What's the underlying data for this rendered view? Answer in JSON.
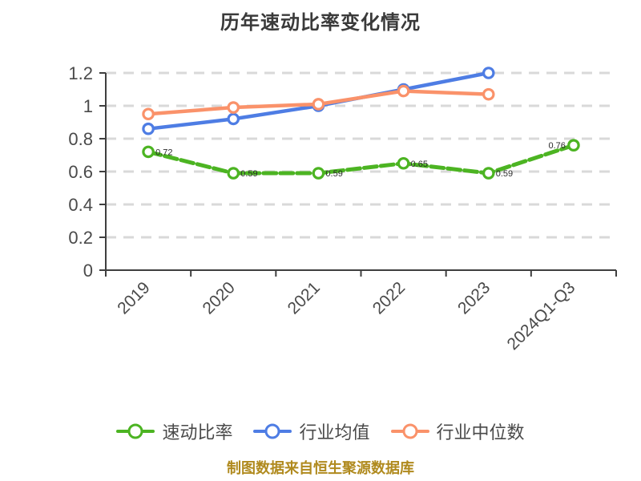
{
  "title": "历年速动比率变化情况",
  "caption": "制图数据来自恒生聚源数据库",
  "legend": {
    "items": [
      {
        "label": "速动比率",
        "color": "#4CB422"
      },
      {
        "label": "行业均值",
        "color": "#4E7DE4"
      },
      {
        "label": "行业中位数",
        "color": "#FA926A"
      }
    ]
  },
  "colors": {
    "quick_ratio": "#4CB422",
    "industry_mean": "#4E7DE4",
    "industry_median": "#FA926A",
    "grid": "#D9D9D9",
    "axis": "#3F3F3F",
    "tick_label": "#4A4A4A",
    "title": "#3A3A3A",
    "caption": "#B08A1E",
    "point_label": "#2B2B2B",
    "marker_fill": "#FFFFFF"
  },
  "chart_data": {
    "type": "line",
    "title": "历年速动比率变化情况",
    "categories": [
      "2019",
      "2020",
      "2021",
      "2022",
      "2023",
      "2024Q1-Q3"
    ],
    "series": [
      {
        "name": "速动比率",
        "color": "#4CB422",
        "line_style": "dashed",
        "values": [
          0.72,
          0.59,
          0.59,
          0.65,
          0.59,
          0.76
        ],
        "point_labels": [
          "0.72",
          "0.59",
          "0.59",
          "0.65",
          "0.59",
          "0.76"
        ]
      },
      {
        "name": "行业均值",
        "color": "#4E7DE4",
        "line_style": "solid",
        "values": [
          0.86,
          0.92,
          1.0,
          1.1,
          1.2,
          null
        ]
      },
      {
        "name": "行业中位数",
        "color": "#FA926A",
        "line_style": "solid",
        "values": [
          0.95,
          0.99,
          1.01,
          1.09,
          1.07,
          null
        ]
      }
    ],
    "xlabel": "",
    "ylabel": "",
    "ylim": [
      0,
      1.2
    ],
    "yticks": [
      0,
      0.2,
      0.4,
      0.6,
      0.8,
      1,
      1.2
    ],
    "grid": "horizontal-dashed",
    "legend_position": "bottom",
    "marker": "circle-white-fill"
  }
}
